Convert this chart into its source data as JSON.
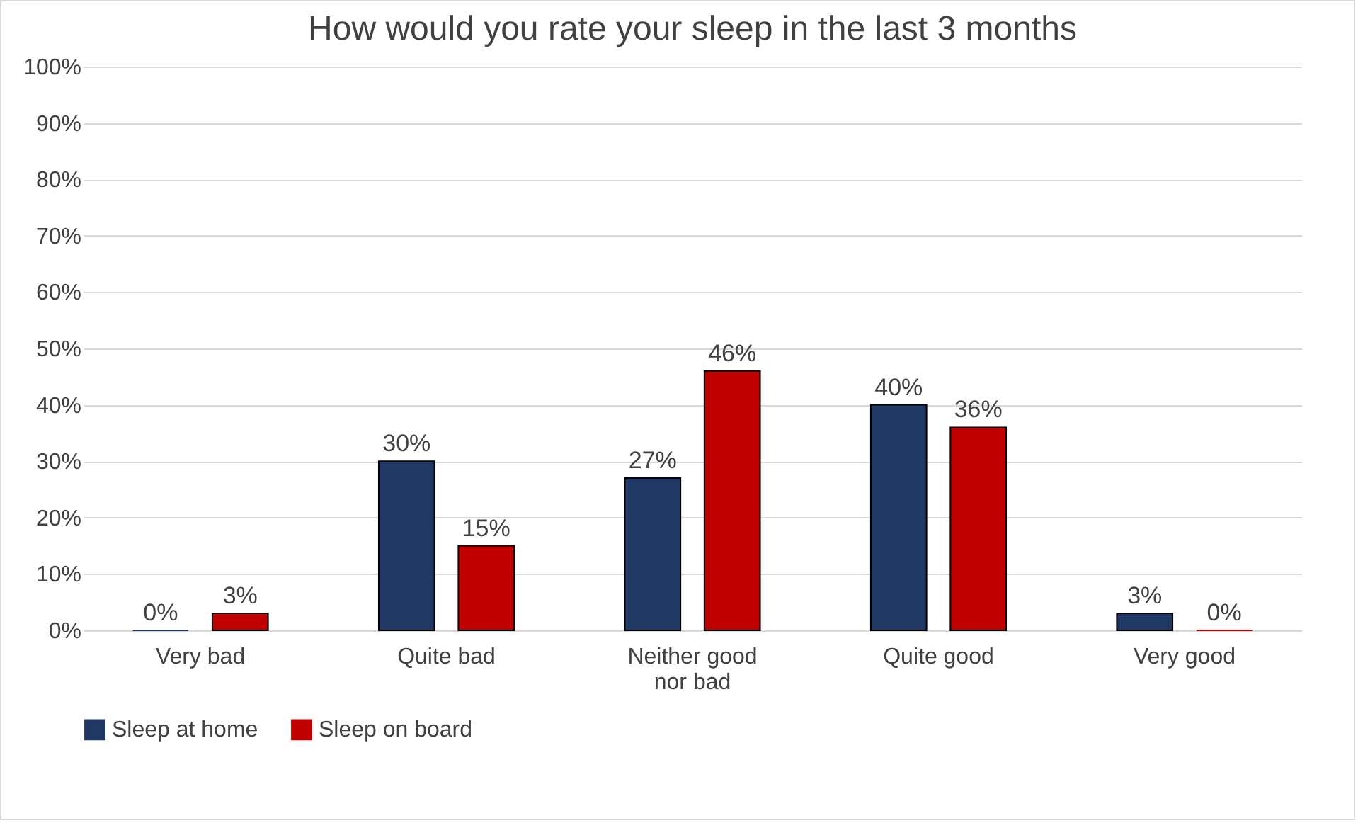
{
  "chart_data": {
    "type": "bar",
    "title": "How would you rate your sleep in the last 3 months",
    "categories": [
      "Very bad",
      "Quite bad",
      "Neither good nor bad",
      "Quite good",
      "Very good"
    ],
    "series": [
      {
        "name": "Sleep at home",
        "color": "#1f3864",
        "values": [
          0,
          30,
          27,
          40,
          3
        ],
        "value_labels": [
          "0%",
          "30%",
          "27%",
          "40%",
          "3%"
        ]
      },
      {
        "name": "Sleep on board",
        "color": "#c00000",
        "values": [
          3,
          15,
          46,
          36,
          0
        ],
        "value_labels": [
          "3%",
          "15%",
          "46%",
          "36%",
          "0%"
        ]
      }
    ],
    "ylim": [
      0,
      100
    ],
    "yticks": [
      {
        "value": 0,
        "label": "0%"
      },
      {
        "value": 10,
        "label": "10%"
      },
      {
        "value": 20,
        "label": "20%"
      },
      {
        "value": 30,
        "label": "30%"
      },
      {
        "value": 40,
        "label": "40%"
      },
      {
        "value": 50,
        "label": "50%"
      },
      {
        "value": 60,
        "label": "60%"
      },
      {
        "value": 70,
        "label": "70%"
      },
      {
        "value": 80,
        "label": "80%"
      },
      {
        "value": 90,
        "label": "90%"
      },
      {
        "value": 100,
        "label": "100%"
      }
    ],
    "grid": "y",
    "legend": "bottom"
  }
}
